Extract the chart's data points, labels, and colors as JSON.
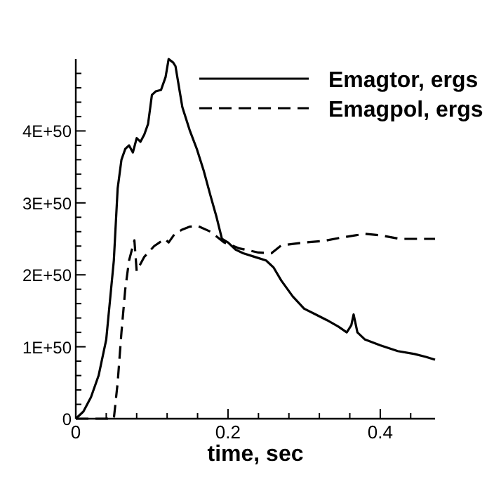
{
  "chart_data": {
    "type": "line",
    "xlabel": "time, sec",
    "xlim": [
      0,
      0.472
    ],
    "ylim": [
      0,
      5e+50
    ],
    "xticks": [
      0,
      {
        "value": 0.04,
        "label": null
      },
      {
        "value": 0.08,
        "label": null
      },
      {
        "value": 0.12,
        "label": null
      },
      {
        "value": 0.16,
        "label": null
      },
      0.2,
      {
        "value": 0.24,
        "label": null
      },
      {
        "value": 0.28,
        "label": null
      },
      {
        "value": 0.32,
        "label": null
      },
      {
        "value": 0.36,
        "label": null
      },
      0.4,
      {
        "value": 0.44,
        "label": null
      }
    ],
    "yticks": [
      0,
      {
        "value": 2e+49,
        "label": null
      },
      {
        "value": 4e+49,
        "label": null
      },
      {
        "value": 6e+49,
        "label": null
      },
      {
        "value": 8e+49,
        "label": null
      },
      {
        "value": 1e+50,
        "label": "1E+50"
      },
      {
        "value": 1.2e+50,
        "label": null
      },
      {
        "value": 1.4e+50,
        "label": null
      },
      {
        "value": 1.6e+50,
        "label": null
      },
      {
        "value": 1.8e+50,
        "label": null
      },
      {
        "value": 2e+50,
        "label": "2E+50"
      },
      {
        "value": 2.2e+50,
        "label": null
      },
      {
        "value": 2.4e+50,
        "label": null
      },
      {
        "value": 2.6e+50,
        "label": null
      },
      {
        "value": 2.8e+50,
        "label": null
      },
      {
        "value": 3e+50,
        "label": "3E+50"
      },
      {
        "value": 3.2e+50,
        "label": null
      },
      {
        "value": 3.4e+50,
        "label": null
      },
      {
        "value": 3.6e+50,
        "label": null
      },
      {
        "value": 3.8e+50,
        "label": null
      },
      {
        "value": 4e+50,
        "label": "4E+50"
      },
      {
        "value": 4.2e+50,
        "label": null
      },
      {
        "value": 4.4e+50,
        "label": null
      },
      {
        "value": 4.6e+50,
        "label": null
      },
      {
        "value": 4.8e+50,
        "label": null
      }
    ],
    "grid": false,
    "legend": "top right",
    "marker": "none",
    "series": [
      {
        "name": "Emagtor, ergs",
        "color": "#000000",
        "line_style": "solid",
        "x": [
          0,
          0.01,
          0.02,
          0.03,
          0.04,
          0.05,
          0.055,
          0.06,
          0.065,
          0.07,
          0.075,
          0.08,
          0.085,
          0.09,
          0.095,
          0.1,
          0.105,
          0.112,
          0.118,
          0.122,
          0.128,
          0.131,
          0.14,
          0.15,
          0.159,
          0.168,
          0.177,
          0.185,
          0.192,
          0.2,
          0.21,
          0.22,
          0.235,
          0.25,
          0.26,
          0.27,
          0.285,
          0.3,
          0.315,
          0.33,
          0.345,
          0.356,
          0.362,
          0.365,
          0.37,
          0.38,
          0.4,
          0.423,
          0.445,
          0.46,
          0.472
        ],
        "values": [
          0,
          1e+49,
          3e+49,
          6e+49,
          1.1e+50,
          2.2e+50,
          3.2e+50,
          3.6e+50,
          3.75e+50,
          3.8e+50,
          3.7e+50,
          3.9e+50,
          3.85e+50,
          3.95e+50,
          4.1e+50,
          4.5e+50,
          4.55e+50,
          4.57e+50,
          4.75e+50,
          5e+50,
          4.95e+50,
          4.9e+50,
          4.33e+50,
          4e+50,
          3.75e+50,
          3.45e+50,
          3.1e+50,
          2.8e+50,
          2.5e+50,
          2.45e+50,
          2.35e+50,
          2.3e+50,
          2.25e+50,
          2.2e+50,
          2.1e+50,
          1.92e+50,
          1.7e+50,
          1.53e+50,
          1.45e+50,
          1.37e+50,
          1.28e+50,
          1.2e+50,
          1.3e+50,
          1.45e+50,
          1.2e+50,
          1.1e+50,
          1.02e+50,
          9.4e+49,
          9e+49,
          8.6e+49,
          8.2e+49
        ]
      },
      {
        "name": "Emagpol, ergs",
        "color": "#000000",
        "line_style": "dashed",
        "x": [
          0,
          0.05,
          0.055,
          0.06,
          0.065,
          0.07,
          0.077,
          0.08,
          0.09,
          0.103,
          0.11,
          0.117,
          0.122,
          0.13,
          0.14,
          0.15,
          0.16,
          0.177,
          0.195,
          0.214,
          0.24,
          0.257,
          0.27,
          0.3,
          0.325,
          0.35,
          0.38,
          0.4,
          0.426,
          0.45,
          0.472
        ],
        "values": [
          0,
          0,
          5e+49,
          1.2e+50,
          1.8e+50,
          2.2e+50,
          2.48e+50,
          2.05e+50,
          2.25e+50,
          2.4e+50,
          2.45e+50,
          2.5e+50,
          2.45e+50,
          2.57e+50,
          2.63e+50,
          2.67e+50,
          2.68e+50,
          2.6e+50,
          2.45e+50,
          2.37e+50,
          2.31e+50,
          2.3e+50,
          2.41e+50,
          2.45e+50,
          2.47e+50,
          2.52e+50,
          2.57e+50,
          2.55e+50,
          2.5e+50,
          2.5e+50,
          2.5e+50
        ]
      }
    ]
  }
}
